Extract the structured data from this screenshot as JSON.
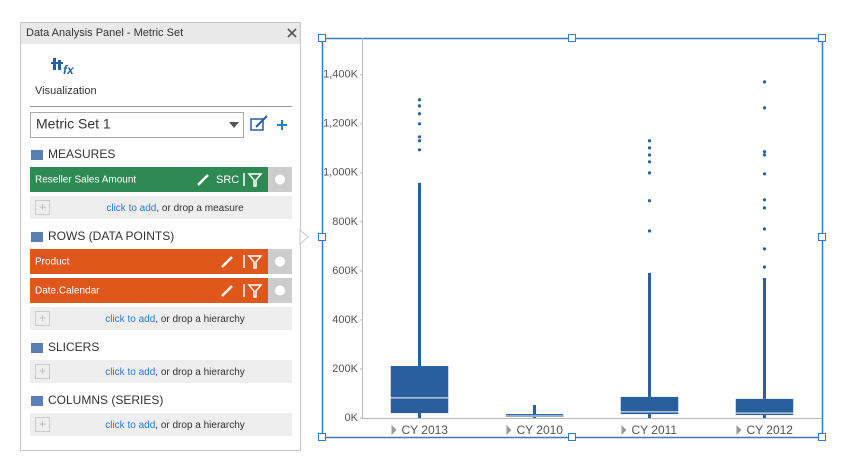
{
  "panel": {
    "title": "Data Analysis Panel - Metric Set",
    "icon_text": "fx",
    "visualization": "Visualization",
    "metric_set": "Metric Set 1",
    "sections": [
      {
        "heading": "MEASURES",
        "items": [
          {
            "label": "Reseller Sales Amount",
            "tag": "SRC"
          }
        ],
        "add_link": "click to add",
        "add_text": ", or drop a measure"
      },
      {
        "heading": "ROWS (DATA POINTS)",
        "items": [
          {
            "label": "Product"
          },
          {
            "label": "Date.Calendar"
          }
        ],
        "add_link": "click to add",
        "add_text": ", or drop a hierarchy"
      },
      {
        "heading": "SLICERS",
        "items": [],
        "add_link": "click to add",
        "add_text": ", or drop a hierarchy"
      },
      {
        "heading": "COLUMNS (SERIES)",
        "items": [],
        "add_link": "click to add",
        "add_text": ", or drop a hierarchy"
      }
    ]
  },
  "chart_data": {
    "type": "box",
    "color": "#2a5f9e",
    "categories": [
      "CY 2013",
      "CY 2010",
      "CY 2011",
      "CY 2012"
    ],
    "boxes": [
      {
        "min": 0,
        "q1": 20,
        "median": 82,
        "q3": 212,
        "max": 959,
        "outliers": [
          1094,
          1131,
          1147,
          1200,
          1241,
          1273,
          1298
        ]
      },
      {
        "min": 0,
        "q1": 4,
        "median": 8,
        "q3": 16,
        "max": 53,
        "outliers": []
      },
      {
        "min": 0,
        "q1": 16,
        "median": 25,
        "q3": 86,
        "max": 592,
        "outliers": [
          763,
          886,
          1000,
          1045,
          1073,
          1102,
          1131
        ]
      },
      {
        "min": 0,
        "q1": 12,
        "median": 20,
        "q3": 78,
        "max": 571,
        "outliers": [
          616,
          690,
          771,
          857,
          890,
          996,
          1073,
          1086,
          1265,
          1371
        ]
      }
    ],
    "ylim": [
      0,
      1550
    ],
    "yticks": [
      {
        "value": 0,
        "label": "0K"
      },
      {
        "value": 200,
        "label": "200K"
      },
      {
        "value": 400,
        "label": "400K"
      },
      {
        "value": 600,
        "label": "600K"
      },
      {
        "value": 800,
        "label": "800K"
      },
      {
        "value": 1000,
        "label": "1,000K"
      },
      {
        "value": 1200,
        "label": "1,200K"
      },
      {
        "value": 1400,
        "label": "1,400K"
      }
    ],
    "grid": false
  }
}
